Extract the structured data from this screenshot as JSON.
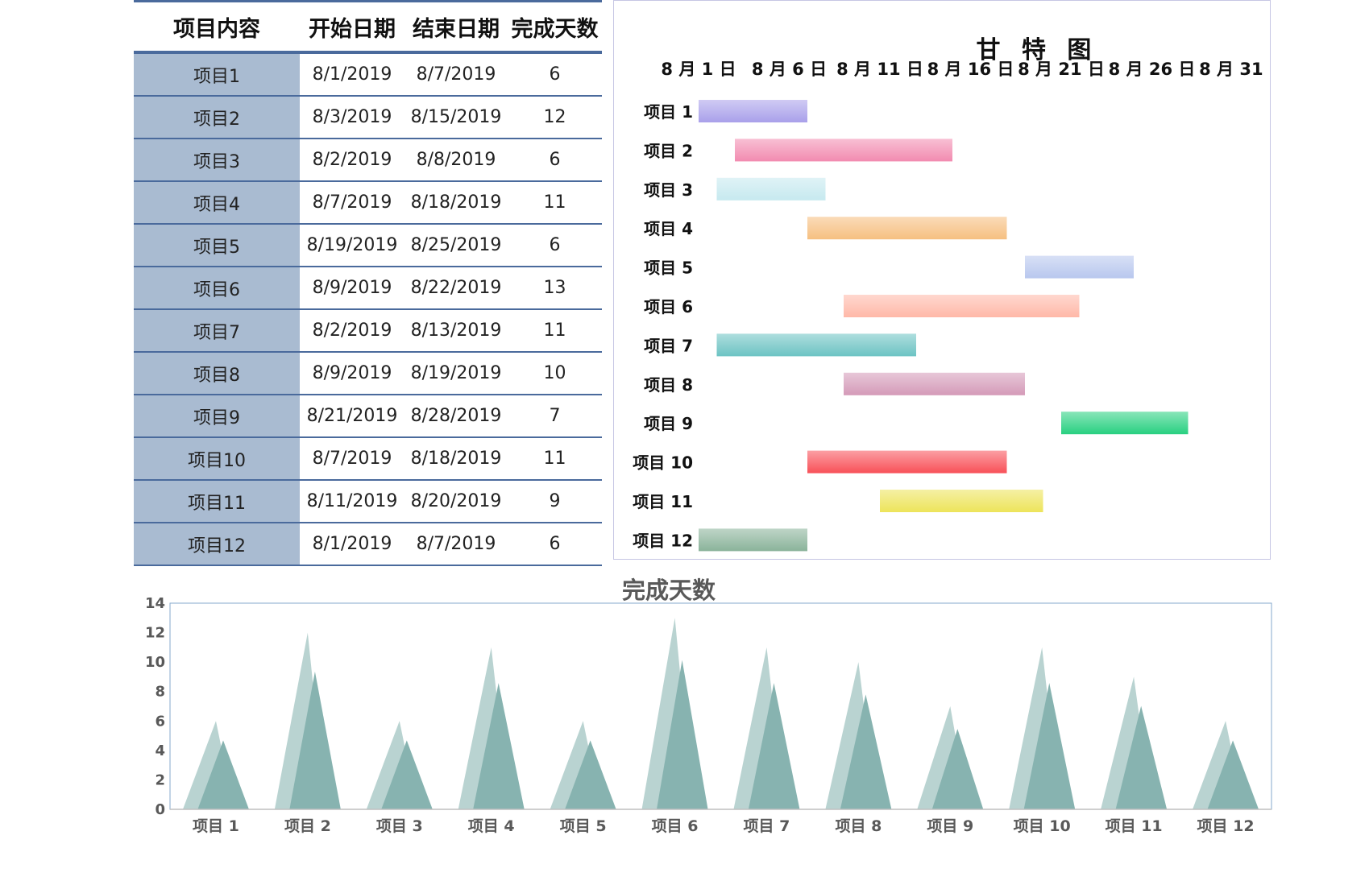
{
  "table": {
    "headers": [
      "项目内容",
      "开始日期",
      "结束日期",
      "完成天数"
    ],
    "rows": [
      {
        "name": "项目1",
        "start": "8/1/2019",
        "end": "8/7/2019",
        "days": "6"
      },
      {
        "name": "项目2",
        "start": "8/3/2019",
        "end": "8/15/2019",
        "days": "12"
      },
      {
        "name": "项目3",
        "start": "8/2/2019",
        "end": "8/8/2019",
        "days": "6"
      },
      {
        "name": "项目4",
        "start": "8/7/2019",
        "end": "8/18/2019",
        "days": "11"
      },
      {
        "name": "项目5",
        "start": "8/19/2019",
        "end": "8/25/2019",
        "days": "6"
      },
      {
        "name": "项目6",
        "start": "8/9/2019",
        "end": "8/22/2019",
        "days": "13"
      },
      {
        "name": "项目7",
        "start": "8/2/2019",
        "end": "8/13/2019",
        "days": "11"
      },
      {
        "name": "项目8",
        "start": "8/9/2019",
        "end": "8/19/2019",
        "days": "10"
      },
      {
        "name": "项目9",
        "start": "8/21/2019",
        "end": "8/28/2019",
        "days": "7"
      },
      {
        "name": "项目10",
        "start": "8/7/2019",
        "end": "8/18/2019",
        "days": "11"
      },
      {
        "name": "项目11",
        "start": "8/11/2019",
        "end": "8/20/2019",
        "days": "9"
      },
      {
        "name": "项目12",
        "start": "8/1/2019",
        "end": "8/7/2019",
        "days": "6"
      }
    ]
  },
  "chart_data": [
    {
      "type": "bar",
      "orientation": "horizontal",
      "subtype": "gantt",
      "title": "甘 特 图",
      "categories": [
        "项目 1",
        "项目 2",
        "项目 3",
        "项目 4",
        "项目 5",
        "项目 6",
        "项目 7",
        "项目 8",
        "项目 9",
        "项目 10",
        "项目 11",
        "项目 12"
      ],
      "start_day": [
        1,
        3,
        2,
        7,
        19,
        9,
        2,
        9,
        21,
        7,
        11,
        1
      ],
      "duration": [
        6,
        12,
        6,
        11,
        6,
        13,
        11,
        10,
        7,
        11,
        9,
        6
      ],
      "x_ticks": [
        1,
        6,
        11,
        16,
        21,
        26,
        31
      ],
      "x_tick_labels": [
        "8 月 1 日",
        "8 月 6 日",
        "8 月 11 日",
        "8 月 16 日",
        "8 月 21 日",
        "8 月 26 日",
        "8 月 31 日"
      ],
      "xlim": [
        1,
        31
      ],
      "x_axis_position": "top",
      "bar_colors": [
        "#a9a0ea",
        "#f28bb0",
        "#c6e9ef",
        "#f6bf80",
        "#b8c7ee",
        "#ffb8a8",
        "#6cc3c3",
        "#d49ab8",
        "#28d080",
        "#f85058",
        "#ede45a",
        "#8ab39a"
      ]
    },
    {
      "type": "area",
      "subtype": "pyramid",
      "title": "完成天数",
      "categories": [
        "项目 1",
        "项目 2",
        "项目 3",
        "项目 4",
        "项目 5",
        "项目 6",
        "项目 7",
        "项目 8",
        "项目 9",
        "项目 10",
        "项目 11",
        "项目 12"
      ],
      "values": [
        6,
        12,
        6,
        11,
        6,
        13,
        11,
        10,
        7,
        11,
        9,
        6
      ],
      "ylim": [
        0,
        14
      ],
      "y_ticks": [
        0,
        2,
        4,
        6,
        8,
        10,
        12,
        14
      ],
      "color": "#87b3b0",
      "grid": false
    }
  ]
}
